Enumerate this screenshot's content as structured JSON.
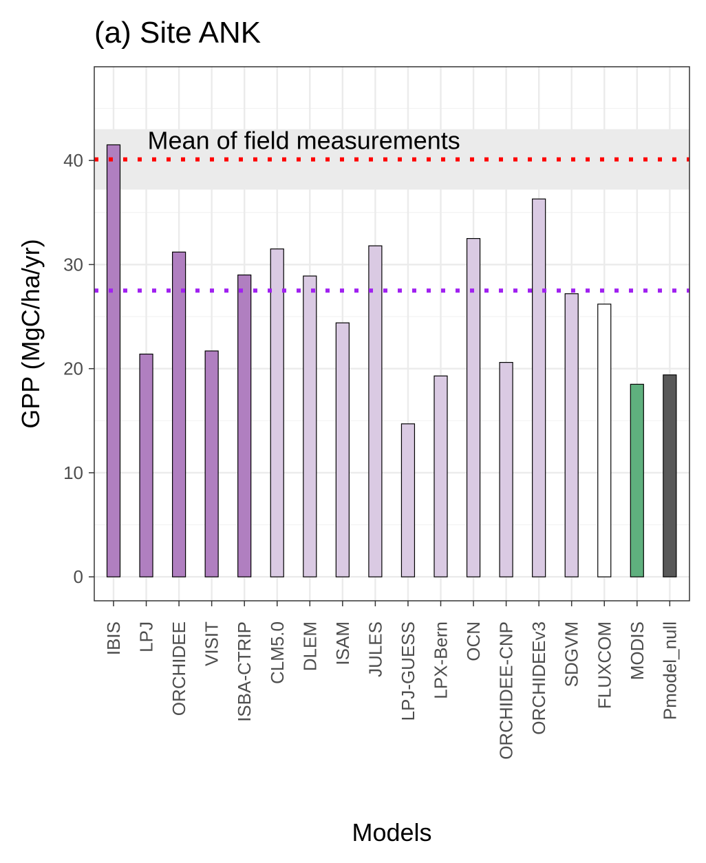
{
  "chart_data": {
    "type": "bar",
    "title": "(a) Site ANK",
    "xlabel": "Models",
    "ylabel": "GPP (MgC/ha/yr)",
    "ylim": [
      -2.3,
      49
    ],
    "yticks": [
      0,
      10,
      20,
      30,
      40
    ],
    "grid": true,
    "categories": [
      "IBIS",
      "LPJ",
      "ORCHIDEE",
      "VISIT",
      "ISBA-CTRIP",
      "CLM5.0",
      "DLEM",
      "ISAM",
      "JULES",
      "LPJ-GUESS",
      "LPX-Bern",
      "OCN",
      "ORCHIDEE-CNP",
      "ORCHIDEEv3",
      "SDGVM",
      "FLUXCOM",
      "MODIS",
      "Pmodel_null"
    ],
    "values": [
      41.5,
      21.4,
      31.2,
      21.7,
      29.0,
      31.5,
      28.9,
      24.4,
      31.8,
      14.7,
      19.3,
      32.5,
      20.6,
      36.3,
      27.2,
      26.2,
      18.5,
      19.4
    ],
    "bar_colors": [
      "#b07fc0",
      "#b07fc0",
      "#b07fc0",
      "#b07fc0",
      "#b07fc0",
      "#dacae3",
      "#dacae3",
      "#dacae3",
      "#dacae3",
      "#dacae3",
      "#dacae3",
      "#dacae3",
      "#dacae3",
      "#dacae3",
      "#dacae3",
      "#ffffff",
      "#5fb07e",
      "#595959"
    ],
    "reference_lines": [
      {
        "value": 40.1,
        "color": "#ff0000",
        "style": "dotted"
      },
      {
        "value": 27.5,
        "color": "#a020f0",
        "style": "dotted"
      }
    ],
    "band": {
      "from": 37.2,
      "to": 43.0,
      "color": "#ebebeb"
    },
    "annotations": [
      {
        "text": "Mean of field measurements",
        "x_category": "LPJ",
        "y": 41.9
      }
    ]
  }
}
